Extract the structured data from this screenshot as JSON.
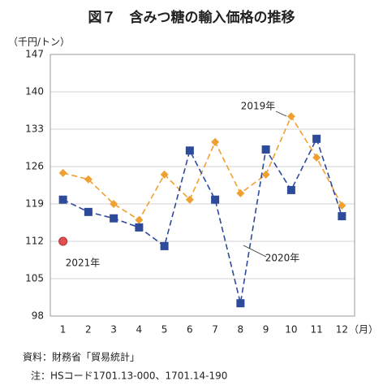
{
  "chart_data": {
    "type": "line",
    "title": "図７　含みつ糖の輸入価格の推移",
    "y_label": "（千円/トン）",
    "x_label": "（月）",
    "categories": [
      "1",
      "2",
      "3",
      "4",
      "5",
      "6",
      "7",
      "8",
      "9",
      "10",
      "11",
      "12"
    ],
    "series": [
      {
        "name": "2019年",
        "color": "#f0a030",
        "marker": "diamond",
        "dashed": true,
        "values": [
          124.8,
          123.6,
          119.0,
          116.0,
          124.5,
          119.8,
          130.6,
          121.0,
          124.5,
          135.4,
          127.7,
          118.7
        ]
      },
      {
        "name": "2020年",
        "color": "#2e4a9a",
        "marker": "square",
        "dashed": true,
        "values": [
          119.8,
          117.5,
          116.3,
          114.6,
          111.1,
          129.0,
          119.8,
          100.4,
          129.2,
          121.6,
          131.2,
          116.7
        ]
      },
      {
        "name": "2021年",
        "color": "#e05050",
        "marker": "circle",
        "dashed": false,
        "values": [
          112.0,
          null,
          null,
          null,
          null,
          null,
          null,
          null,
          null,
          null,
          null,
          null
        ]
      }
    ],
    "ylim": [
      98,
      147
    ],
    "yticks": [
      98,
      105,
      112,
      119,
      126,
      133,
      140,
      147
    ],
    "grid": true,
    "notes": [
      "資料：財務省「貿易統計」",
      "注：HSコード1701.13-000、1701.14-190"
    ]
  }
}
